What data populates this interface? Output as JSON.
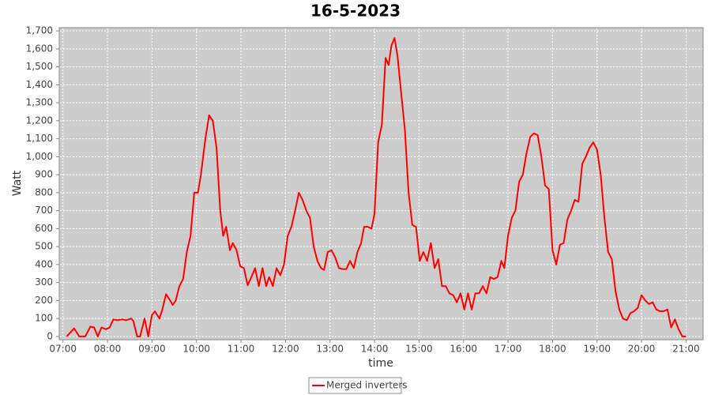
{
  "chart_data": {
    "type": "line",
    "title": "16-5-2023",
    "x_label": "time",
    "y_label": "Watt",
    "x": [
      "07:05",
      "07:15",
      "07:22",
      "07:30",
      "07:37",
      "07:42",
      "07:47",
      "07:52",
      "07:58",
      "08:03",
      "08:08",
      "08:13",
      "08:20",
      "08:25",
      "08:32",
      "08:35",
      "08:40",
      "08:44",
      "08:50",
      "08:55",
      "09:00",
      "09:04",
      "09:10",
      "09:14",
      "09:19",
      "09:23",
      "09:28",
      "09:32",
      "09:37",
      "09:42",
      "09:47",
      "09:52",
      "09:57",
      "10:02",
      "10:06",
      "10:12",
      "10:17",
      "10:22",
      "10:27",
      "10:32",
      "10:36",
      "10:40",
      "10:45",
      "10:49",
      "10:54",
      "10:59",
      "11:04",
      "11:09",
      "11:14",
      "11:19",
      "11:24",
      "11:29",
      "11:34",
      "11:38",
      "11:43",
      "11:48",
      "11:53",
      "11:58",
      "12:03",
      "12:08",
      "12:13",
      "12:18",
      "12:23",
      "12:28",
      "12:33",
      "12:38",
      "12:43",
      "12:48",
      "12:52",
      "12:57",
      "13:02",
      "13:07",
      "13:12",
      "13:17",
      "13:22",
      "13:27",
      "13:32",
      "13:37",
      "13:42",
      "13:46",
      "13:51",
      "13:56",
      "14:00",
      "14:05",
      "14:10",
      "14:15",
      "14:19",
      "14:23",
      "14:27",
      "14:31",
      "14:36",
      "14:41",
      "14:46",
      "14:51",
      "14:56",
      "15:01",
      "15:06",
      "15:11",
      "15:16",
      "15:21",
      "15:26",
      "15:31",
      "15:36",
      "15:41",
      "15:46",
      "15:51",
      "15:56",
      "16:01",
      "16:06",
      "16:11",
      "16:16",
      "16:21",
      "16:26",
      "16:31",
      "16:36",
      "16:41",
      "16:46",
      "16:51",
      "16:55",
      "17:00",
      "17:05",
      "17:10",
      "17:15",
      "17:20",
      "17:25",
      "17:30",
      "17:35",
      "17:40",
      "17:45",
      "17:50",
      "17:55",
      "18:00",
      "18:05",
      "18:10",
      "18:15",
      "18:20",
      "18:25",
      "18:30",
      "18:35",
      "18:40",
      "18:45",
      "18:50",
      "18:55",
      "19:00",
      "19:05",
      "19:10",
      "19:15",
      "19:20",
      "19:25",
      "19:30",
      "19:35",
      "19:40",
      "19:45",
      "19:50",
      "19:55",
      "20:00",
      "20:05",
      "20:10",
      "20:15",
      "20:20",
      "20:25",
      "20:30",
      "20:35",
      "20:40",
      "20:45",
      "20:50",
      "20:55",
      "21:00"
    ],
    "series": [
      {
        "name": "Merged inverters",
        "color": "#ff0000",
        "values": [
          0,
          45,
          0,
          0,
          55,
          50,
          0,
          50,
          40,
          50,
          95,
          90,
          95,
          90,
          100,
          85,
          0,
          0,
          100,
          0,
          120,
          140,
          100,
          150,
          235,
          210,
          175,
          200,
          280,
          320,
          470,
          560,
          800,
          800,
          900,
          1100,
          1230,
          1200,
          1050,
          700,
          560,
          610,
          480,
          520,
          480,
          390,
          380,
          285,
          330,
          380,
          280,
          380,
          280,
          330,
          280,
          380,
          340,
          400,
          560,
          610,
          700,
          800,
          760,
          700,
          660,
          500,
          420,
          380,
          370,
          470,
          480,
          440,
          380,
          375,
          375,
          420,
          380,
          470,
          520,
          610,
          610,
          600,
          680,
          1080,
          1180,
          1550,
          1510,
          1620,
          1660,
          1560,
          1350,
          1150,
          800,
          620,
          610,
          420,
          470,
          420,
          520,
          380,
          430,
          280,
          280,
          240,
          230,
          190,
          240,
          150,
          240,
          150,
          240,
          240,
          280,
          240,
          330,
          320,
          330,
          420,
          380,
          560,
          660,
          700,
          860,
          900,
          1020,
          1110,
          1130,
          1120,
          1000,
          840,
          820,
          480,
          400,
          510,
          520,
          650,
          700,
          760,
          750,
          960,
          1000,
          1050,
          1080,
          1040,
          900,
          660,
          470,
          430,
          250,
          150,
          100,
          90,
          130,
          140,
          160,
          230,
          200,
          180,
          190,
          150,
          140,
          140,
          150,
          50,
          95,
          40,
          0,
          0
        ]
      }
    ],
    "xlim": [
      "06:55",
      "21:23"
    ],
    "xticks": [
      "07:00",
      "08:00",
      "09:00",
      "10:00",
      "11:00",
      "12:00",
      "13:00",
      "14:00",
      "15:00",
      "16:00",
      "17:00",
      "18:00",
      "19:00",
      "20:00",
      "21:00"
    ],
    "ylim": [
      -18,
      1718
    ],
    "yticks": [
      0,
      100,
      200,
      300,
      400,
      500,
      600,
      700,
      800,
      900,
      {
        "value": 1000,
        "label": "1,000"
      },
      {
        "value": 1100,
        "label": "1,100"
      },
      {
        "value": 1200,
        "label": "1,200"
      },
      {
        "value": 1300,
        "label": "1,300"
      },
      {
        "value": 1400,
        "label": "1,400"
      },
      {
        "value": 1500,
        "label": "1,500"
      },
      {
        "value": 1600,
        "label": "1,600"
      },
      {
        "value": 1700,
        "label": "1,700"
      }
    ],
    "grid": true,
    "legend": "bottom"
  }
}
